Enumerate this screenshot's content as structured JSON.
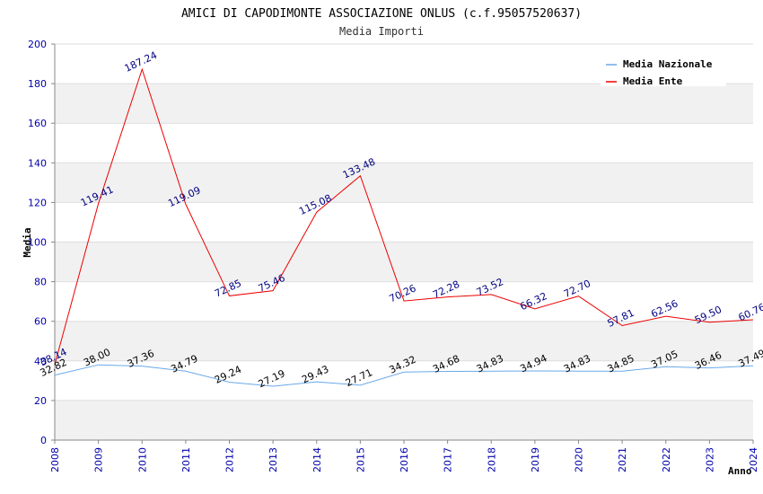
{
  "chart_data": {
    "type": "line",
    "title": "AMICI DI CAPODIMONTE ASSOCIAZIONE ONLUS (c.f.95057520637)",
    "subtitle": "Media Importi",
    "xlabel": "Anno",
    "ylabel": "Media",
    "ylim": [
      0,
      200
    ],
    "yticks": [
      "0",
      "20",
      "40",
      "60",
      "80",
      "100",
      "120",
      "140",
      "160",
      "180",
      "200"
    ],
    "categories": [
      "2008",
      "2009",
      "2010",
      "2011",
      "2012",
      "2013",
      "2014",
      "2015",
      "2016",
      "2017",
      "2018",
      "2019",
      "2020",
      "2021",
      "2022",
      "2023",
      "2024"
    ],
    "grid": true,
    "legend_position": "top-right",
    "series": [
      {
        "name": "Media Nazionale",
        "color": "#6aa9e8",
        "label_color": "#000000",
        "values": [
          32.82,
          38.0,
          37.36,
          34.79,
          29.24,
          27.19,
          29.43,
          27.71,
          34.32,
          34.68,
          34.83,
          34.94,
          34.83,
          34.85,
          37.05,
          36.46,
          37.49
        ],
        "labels": [
          "32.82",
          "38.00",
          "37.36",
          "34.79",
          "29.24",
          "27.19",
          "29.43",
          "27.71",
          "34.32",
          "34.68",
          "34.83",
          "34.94",
          "34.83",
          "34.85",
          "37.05",
          "36.46",
          "37.49"
        ]
      },
      {
        "name": "Media Ente",
        "color": "#ee0000",
        "label_color": "#000080",
        "values": [
          38.14,
          119.41,
          187.24,
          119.09,
          72.85,
          75.46,
          115.08,
          133.48,
          70.26,
          72.28,
          73.52,
          66.32,
          72.7,
          57.81,
          62.56,
          59.5,
          60.76
        ],
        "labels": [
          "38.14",
          "119.41",
          "187.24",
          "119.09",
          "72.85",
          "75.46",
          "115.08",
          "133.48",
          "70.26",
          "72.28",
          "73.52",
          "66.32",
          "72.70",
          "57.81",
          "62.56",
          "59.50",
          "60.76"
        ]
      }
    ]
  }
}
